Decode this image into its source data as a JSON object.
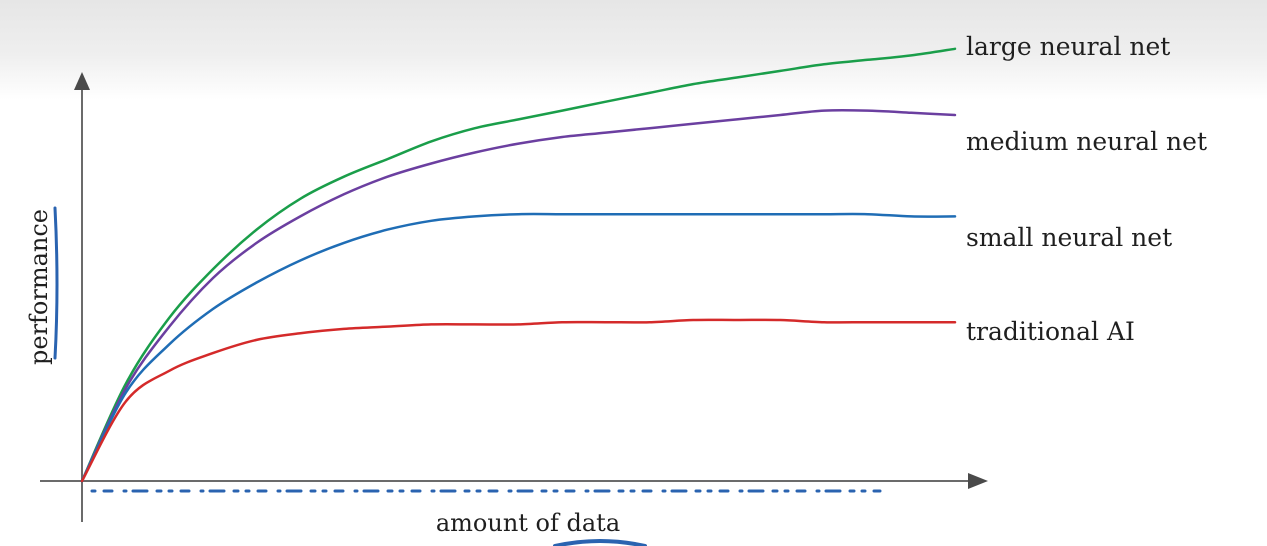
{
  "chart_data": {
    "type": "line",
    "title": "",
    "xlabel": "amount of data",
    "ylabel": "performance",
    "xlim": [
      0,
      100
    ],
    "ylim": [
      0,
      100
    ],
    "grid": false,
    "legend": "labels at line ends (right)",
    "x": [
      0,
      5,
      10,
      15,
      20,
      25,
      30,
      35,
      40,
      45,
      50,
      55,
      60,
      65,
      70,
      75,
      80,
      85,
      90,
      95,
      100
    ],
    "series": [
      {
        "name": "large neural net",
        "color": "#1a9e4a",
        "values": [
          0,
          22,
          37,
          48,
          57,
          64,
          69,
          73,
          77,
          80,
          82,
          84,
          86,
          88,
          90,
          91.5,
          93,
          94.5,
          95.5,
          96.5,
          98
        ]
      },
      {
        "name": "medium neural net",
        "color": "#6b3fa0",
        "values": [
          0,
          21,
          35,
          46,
          54,
          60,
          65,
          69,
          72,
          74.5,
          76.5,
          78,
          79,
          80,
          81,
          82,
          83,
          84,
          84,
          83.5,
          83
        ]
      },
      {
        "name": "small neural net",
        "color": "#1f6db5",
        "values": [
          0,
          20,
          31,
          39,
          45,
          50,
          54,
          57,
          59,
          60,
          60.5,
          60.5,
          60.5,
          60.5,
          60.5,
          60.5,
          60.5,
          60.5,
          60.5,
          60,
          60
        ]
      },
      {
        "name": "traditional AI",
        "color": "#d42a2a",
        "values": [
          0,
          18,
          25,
          29,
          32,
          33.5,
          34.5,
          35,
          35.5,
          35.5,
          35.5,
          36,
          36,
          36,
          36.5,
          36.5,
          36.5,
          36,
          36,
          36,
          36
        ]
      }
    ]
  }
}
